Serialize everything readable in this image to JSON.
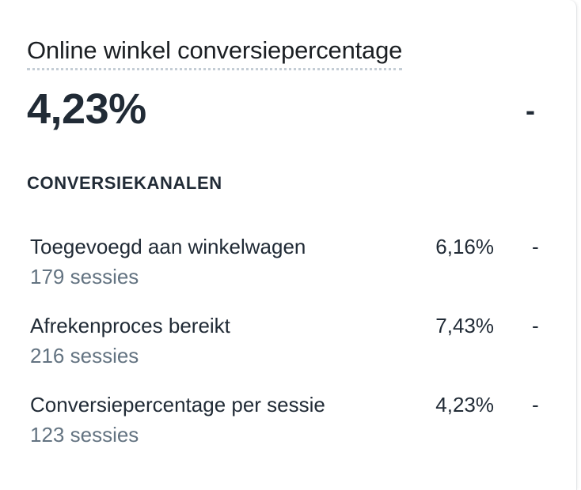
{
  "card": {
    "title": "Online winkel conversiepercentage",
    "value": "4,23%",
    "change": "-"
  },
  "section": {
    "heading": "CONVERSIEKANALEN"
  },
  "rows": [
    {
      "label": "Toegevoegd aan winkelwagen",
      "sessions": "179 sessies",
      "percentage": "6,16%",
      "change": "-"
    },
    {
      "label": "Afrekenproces bereikt",
      "sessions": "216 sessies",
      "percentage": "7,43%",
      "change": "-"
    },
    {
      "label": "Conversiepercentage per sessie",
      "sessions": "123 sessies",
      "percentage": "4,23%",
      "change": "-"
    }
  ],
  "colors": {
    "text_primary": "#212b36",
    "text_secondary": "#637381",
    "dotted_underline": "#c4cdd5"
  }
}
